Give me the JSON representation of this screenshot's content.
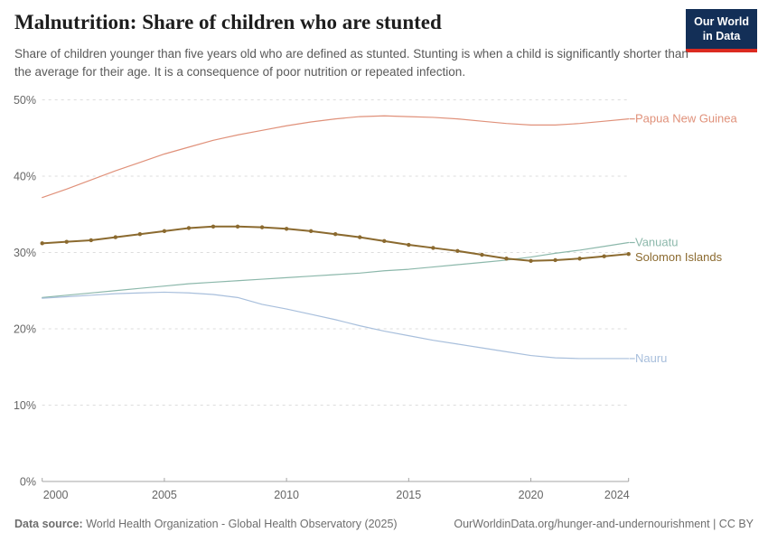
{
  "header": {
    "title": "Malnutrition: Share of children who are stunted",
    "subtitle": "Share of children younger than five years old who are defined as stunted. Stunting is when a child is significantly shorter than the average for their age. It is a consequence of poor nutrition or repeated infection.",
    "logo": {
      "line1": "Our World",
      "line2": "in Data",
      "bg_color": "#132F57",
      "accent_color": "#DB2A20"
    }
  },
  "chart_data": {
    "type": "line",
    "title": "Malnutrition: Share of children who are stunted",
    "xlabel": "",
    "ylabel": "",
    "x_range": [
      2000,
      2024
    ],
    "xticks": [
      2000,
      2005,
      2010,
      2015,
      2020,
      2024
    ],
    "yticks": [
      0,
      10,
      20,
      30,
      40,
      50
    ],
    "ytick_suffix": "%",
    "ylim": [
      0,
      50
    ],
    "grid": "horizontal-dashed",
    "legend_position": "right-end-labels",
    "series": [
      {
        "name": "Papua New Guinea",
        "color": "#E0917A",
        "line_width": 1.2,
        "markers": false,
        "label_dy": 0,
        "values": [
          37.2,
          38.3,
          39.5,
          40.7,
          41.8,
          42.9,
          43.8,
          44.7,
          45.4,
          46.0,
          46.6,
          47.1,
          47.5,
          47.8,
          47.9,
          47.8,
          47.7,
          47.5,
          47.2,
          46.9,
          46.7,
          46.7,
          46.9,
          47.2,
          47.5
        ]
      },
      {
        "name": "Vanuatu",
        "color": "#8CB8AB",
        "line_width": 1.2,
        "markers": false,
        "label_dy": 0,
        "values": [
          24.1,
          24.4,
          24.7,
          25.0,
          25.3,
          25.6,
          25.9,
          26.1,
          26.3,
          26.5,
          26.7,
          26.9,
          27.1,
          27.3,
          27.6,
          27.8,
          28.1,
          28.4,
          28.7,
          29.0,
          29.4,
          29.9,
          30.3,
          30.8,
          31.3
        ]
      },
      {
        "name": "Solomon Islands",
        "color": "#8B6A2F",
        "line_width": 2,
        "markers": true,
        "label_dy": 4,
        "values": [
          31.2,
          31.4,
          31.6,
          32.0,
          32.4,
          32.8,
          33.2,
          33.4,
          33.4,
          33.3,
          33.1,
          32.8,
          32.4,
          32.0,
          31.5,
          31.0,
          30.6,
          30.2,
          29.7,
          29.2,
          28.9,
          29.0,
          29.2,
          29.5,
          29.8
        ]
      },
      {
        "name": "Nauru",
        "color": "#A8BFDC",
        "line_width": 1.2,
        "markers": false,
        "label_dy": 0,
        "values": [
          24.0,
          24.2,
          24.4,
          24.6,
          24.7,
          24.8,
          24.7,
          24.5,
          24.1,
          23.2,
          22.6,
          21.9,
          21.2,
          20.4,
          19.7,
          19.1,
          18.5,
          18.0,
          17.5,
          17.0,
          16.5,
          16.2,
          16.1,
          16.1,
          16.1
        ]
      }
    ]
  },
  "footer": {
    "data_source_label": "Data source:",
    "data_source_value": " World Health Organization - Global Health Observatory (2025)",
    "attribution": "OurWorldinData.org/hunger-and-undernourishment | CC BY"
  }
}
